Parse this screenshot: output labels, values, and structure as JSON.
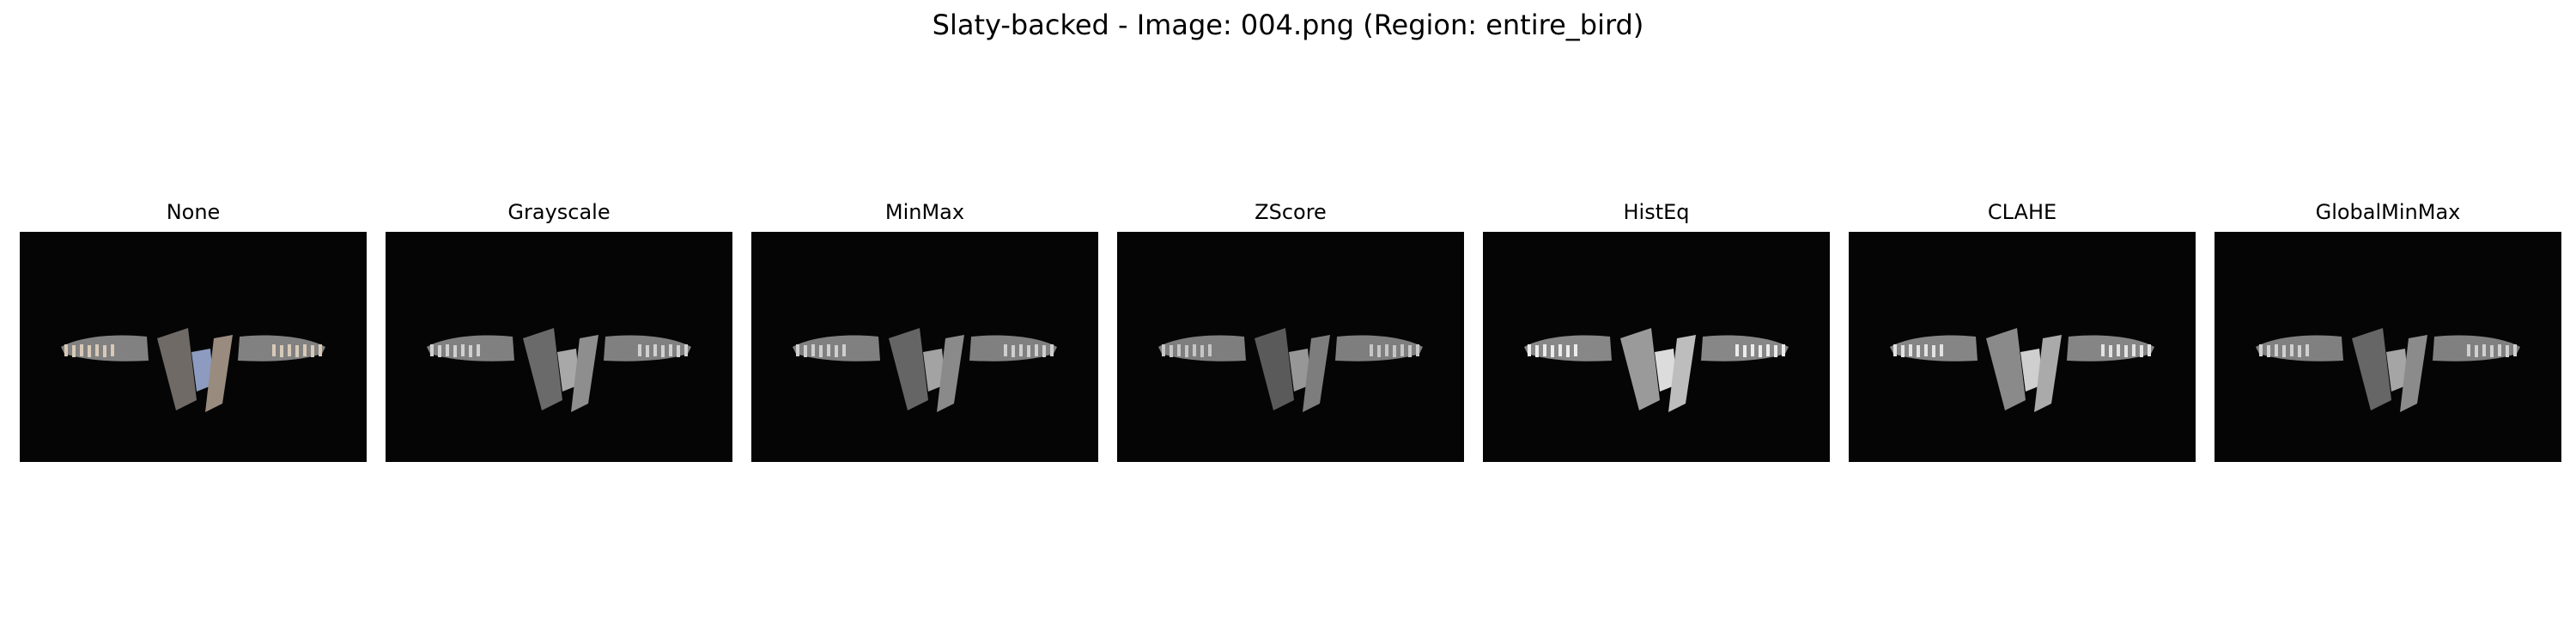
{
  "figure": {
    "title": "Slaty-backed - Image: 004.png (Region: entire_bird)"
  },
  "panels": [
    {
      "title": "None",
      "colors": {
        "wing": "#e8e8e8",
        "body_left": "#6f6a66",
        "body_center": "#8c9bbf",
        "body_right": "#9a8b7f",
        "wing_tip": "#d8c9b8"
      }
    },
    {
      "title": "Grayscale",
      "colors": {
        "wing": "#e6e6e6",
        "body_left": "#6a6a6a",
        "body_center": "#a8a8a8",
        "body_right": "#8e8e8e",
        "wing_tip": "#d0d0d0"
      }
    },
    {
      "title": "MinMax",
      "colors": {
        "wing": "#e6e6e6",
        "body_left": "#656565",
        "body_center": "#a3a3a3",
        "body_right": "#8a8a8a",
        "wing_tip": "#cfcfcf"
      }
    },
    {
      "title": "ZScore",
      "colors": {
        "wing": "#e2e2e2",
        "body_left": "#5a5a5a",
        "body_center": "#979797",
        "body_right": "#7d7d7d",
        "wing_tip": "#c6c6c6"
      }
    },
    {
      "title": "HistEq",
      "colors": {
        "wing": "#f2f2f2",
        "body_left": "#9a9a9a",
        "body_center": "#dcdcdc",
        "body_right": "#bdbdbd",
        "wing_tip": "#ececec"
      }
    },
    {
      "title": "CLAHE",
      "colors": {
        "wing": "#eeeeee",
        "body_left": "#8a8a8a",
        "body_center": "#cfcfcf",
        "body_right": "#aaaaaa",
        "wing_tip": "#e3e3e3"
      }
    },
    {
      "title": "GlobalMinMax",
      "colors": {
        "wing": "#e6e6e6",
        "body_left": "#666666",
        "body_center": "#a5a5a5",
        "body_right": "#8b8b8b",
        "wing_tip": "#d0d0d0"
      }
    }
  ]
}
